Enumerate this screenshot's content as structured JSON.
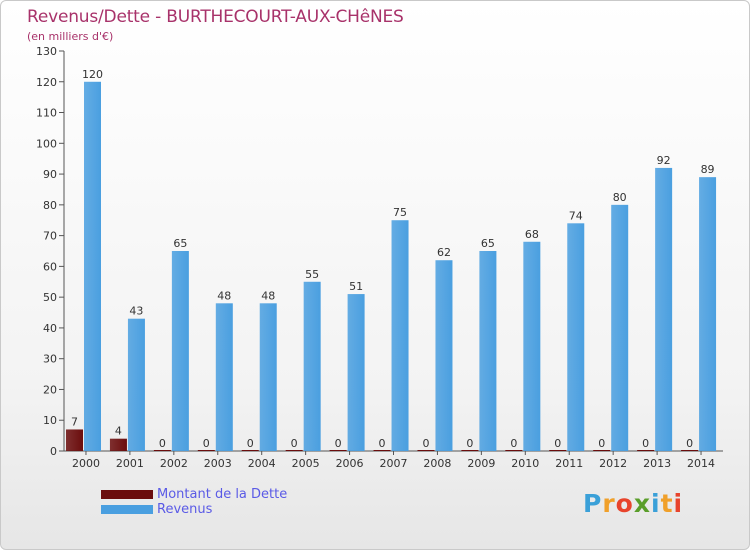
{
  "header": {
    "title": "Revenus/Dette - BURTHECOURT-AUX-CHêNES",
    "subtitle": "(en milliers d'€)"
  },
  "legend": {
    "items": [
      {
        "label": "Montant de la Dette",
        "color": "#6b0d0d"
      },
      {
        "label": "Revenus",
        "color": "#4a9fe0"
      }
    ]
  },
  "logo": {
    "text": "Proxiti",
    "letters": [
      {
        "ch": "P",
        "color": "#3aa0d8"
      },
      {
        "ch": "r",
        "color": "#f0a02a"
      },
      {
        "ch": "o",
        "color": "#e8442c"
      },
      {
        "ch": "x",
        "color": "#5a9e2a"
      },
      {
        "ch": "i",
        "color": "#3aa0d8"
      },
      {
        "ch": "t",
        "color": "#f0a02a"
      },
      {
        "ch": "i",
        "color": "#e8442c"
      }
    ]
  },
  "chart_data": {
    "type": "bar",
    "title": "Revenus/Dette - BURTHECOURT-AUX-CHêNES",
    "subtitle": "(en milliers d'€)",
    "categories": [
      "2000",
      "2001",
      "2002",
      "2003",
      "2004",
      "2005",
      "2006",
      "2007",
      "2008",
      "2009",
      "2010",
      "2011",
      "2012",
      "2013",
      "2014"
    ],
    "series": [
      {
        "name": "Montant de la Dette",
        "color": "#6b0d0d",
        "values": [
          7,
          4,
          0,
          0,
          0,
          0,
          0,
          0,
          0,
          0,
          0,
          0,
          0,
          0,
          0
        ]
      },
      {
        "name": "Revenus",
        "color": "#4a9fe0",
        "values": [
          120,
          43,
          65,
          48,
          48,
          55,
          51,
          75,
          62,
          65,
          68,
          74,
          80,
          92,
          89
        ]
      }
    ],
    "ylim": [
      0,
      130
    ],
    "ytick_step": 10,
    "grid": false,
    "legend_position": "bottom-left"
  }
}
